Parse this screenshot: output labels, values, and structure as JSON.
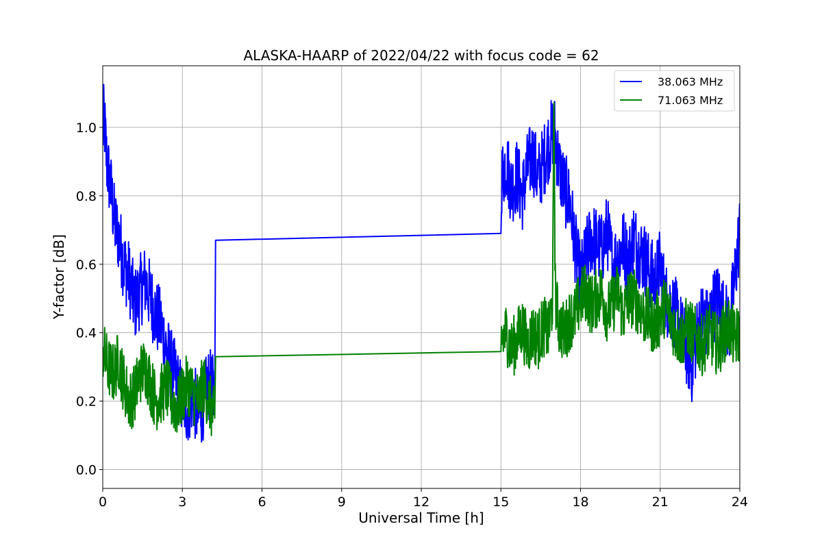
{
  "chart_data": {
    "type": "line",
    "title": "ALASKA-HAARP of 2022/04/22 with focus code = 62",
    "xlabel": "Universal Time [h]",
    "ylabel": "Y-factor [dB]",
    "xlim": [
      0,
      24
    ],
    "ylim": [
      -0.055,
      1.18
    ],
    "xticks": [
      0,
      3,
      6,
      9,
      12,
      15,
      18,
      21,
      24
    ],
    "yticks": [
      0.0,
      0.2,
      0.4,
      0.6,
      0.8,
      1.0
    ],
    "xtick_labels": [
      "0",
      "3",
      "6",
      "9",
      "12",
      "15",
      "18",
      "21",
      "24"
    ],
    "ytick_labels": [
      "0.0",
      "0.2",
      "0.4",
      "0.6",
      "0.8",
      "1.0"
    ],
    "grid": true,
    "legend": "top-right",
    "series": [
      {
        "name": "38.063 MHz",
        "color": "#0000ff",
        "x": [
          0.0,
          0.05,
          0.15,
          0.3,
          0.45,
          0.6,
          0.8,
          1.0,
          1.2,
          1.4,
          1.6,
          1.8,
          2.0,
          2.2,
          2.4,
          2.6,
          2.8,
          3.0,
          3.2,
          3.4,
          3.6,
          3.8,
          4.0,
          4.2,
          4.25,
          15.0,
          15.02,
          15.2,
          15.4,
          15.6,
          15.8,
          16.0,
          16.2,
          16.4,
          16.6,
          16.8,
          17.0,
          17.2,
          17.4,
          17.6,
          17.8,
          18.0,
          18.2,
          18.4,
          18.6,
          18.8,
          19.0,
          19.2,
          19.4,
          19.6,
          19.8,
          20.0,
          20.2,
          20.4,
          20.6,
          20.8,
          21.0,
          21.2,
          21.4,
          21.6,
          21.8,
          22.0,
          22.2,
          22.4,
          22.6,
          22.8,
          23.0,
          23.2,
          23.4,
          23.6,
          23.8,
          24.0
        ],
        "y": [
          0.98,
          1.03,
          0.9,
          0.82,
          0.72,
          0.68,
          0.6,
          0.56,
          0.48,
          0.52,
          0.55,
          0.5,
          0.45,
          0.42,
          0.35,
          0.3,
          0.25,
          0.2,
          0.18,
          0.22,
          0.15,
          0.2,
          0.25,
          0.22,
          0.67,
          0.69,
          0.85,
          0.9,
          0.82,
          0.86,
          0.8,
          0.88,
          0.92,
          0.85,
          0.9,
          0.95,
          1.0,
          0.88,
          0.82,
          0.78,
          0.65,
          0.55,
          0.62,
          0.68,
          0.66,
          0.64,
          0.7,
          0.6,
          0.62,
          0.66,
          0.6,
          0.68,
          0.64,
          0.62,
          0.58,
          0.55,
          0.6,
          0.5,
          0.48,
          0.45,
          0.4,
          0.35,
          0.3,
          0.4,
          0.45,
          0.42,
          0.48,
          0.5,
          0.45,
          0.42,
          0.55,
          0.7
        ]
      },
      {
        "name": "71.063 MHz",
        "color": "#008000",
        "x": [
          0.0,
          0.2,
          0.4,
          0.6,
          0.8,
          1.0,
          1.2,
          1.4,
          1.6,
          1.8,
          2.0,
          2.2,
          2.4,
          2.6,
          2.8,
          3.0,
          3.2,
          3.4,
          3.6,
          3.8,
          4.0,
          4.2,
          4.25,
          15.0,
          15.02,
          15.2,
          15.4,
          15.6,
          15.8,
          16.0,
          16.2,
          16.4,
          16.6,
          16.8,
          16.95,
          17.0,
          17.05,
          17.2,
          17.4,
          17.6,
          17.8,
          18.0,
          18.2,
          18.4,
          18.6,
          18.8,
          19.0,
          19.2,
          19.4,
          19.6,
          19.8,
          20.0,
          20.2,
          20.4,
          20.6,
          20.8,
          21.0,
          21.2,
          21.4,
          21.6,
          21.8,
          22.0,
          22.2,
          22.4,
          22.6,
          22.8,
          23.0,
          23.2,
          23.4,
          23.6,
          23.8,
          24.0
        ],
        "y": [
          0.35,
          0.3,
          0.28,
          0.32,
          0.25,
          0.2,
          0.22,
          0.28,
          0.3,
          0.25,
          0.2,
          0.22,
          0.24,
          0.2,
          0.18,
          0.22,
          0.25,
          0.22,
          0.2,
          0.25,
          0.2,
          0.15,
          0.33,
          0.345,
          0.38,
          0.4,
          0.35,
          0.38,
          0.42,
          0.36,
          0.4,
          0.38,
          0.42,
          0.4,
          0.5,
          1.1,
          0.5,
          0.42,
          0.4,
          0.44,
          0.45,
          0.5,
          0.52,
          0.48,
          0.5,
          0.52,
          0.46,
          0.48,
          0.52,
          0.45,
          0.5,
          0.5,
          0.48,
          0.45,
          0.44,
          0.42,
          0.45,
          0.48,
          0.44,
          0.4,
          0.38,
          0.42,
          0.4,
          0.38,
          0.36,
          0.4,
          0.38,
          0.36,
          0.4,
          0.42,
          0.38,
          0.4
        ]
      }
    ]
  }
}
